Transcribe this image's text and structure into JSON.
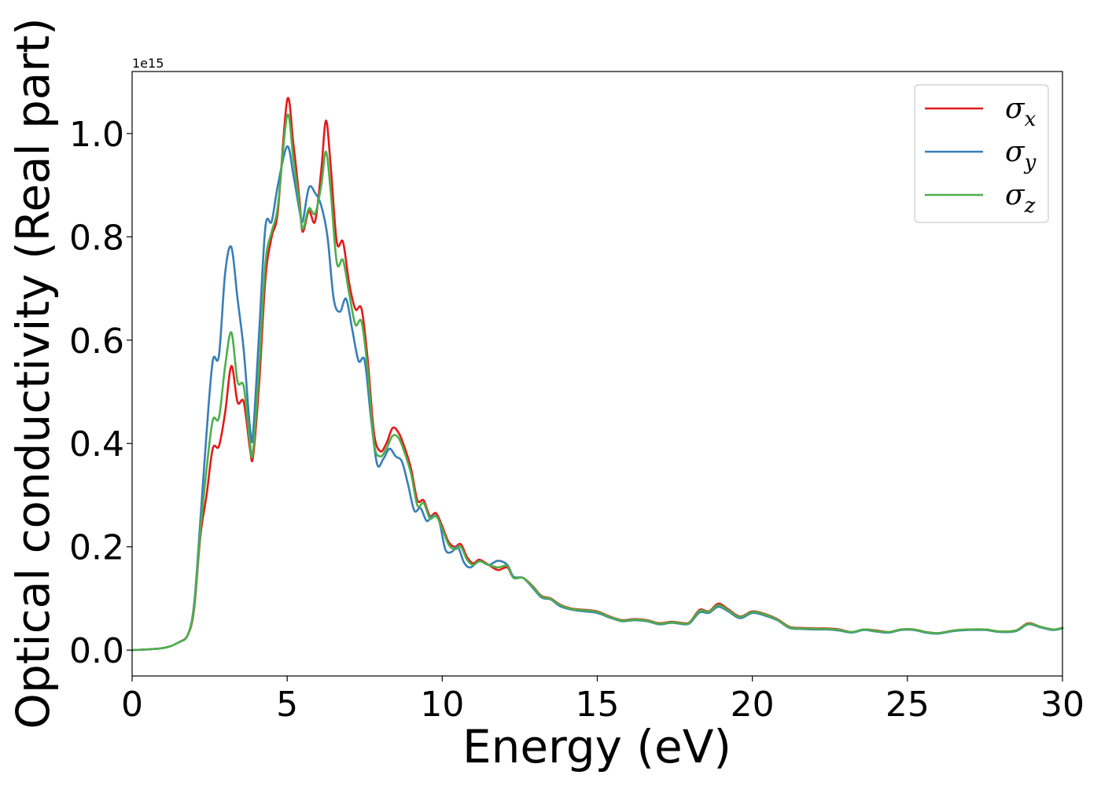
{
  "chart_data": {
    "type": "line",
    "xlabel": "Energy (eV)",
    "ylabel": "Optical conductivity (Real part)",
    "y_offset_text": "1e15",
    "xlim": [
      0,
      30
    ],
    "ylim": [
      -0.05,
      1.12
    ],
    "x_ticks": [
      0,
      5,
      10,
      15,
      20,
      25,
      30
    ],
    "x_tick_labels": [
      "0",
      "5",
      "10",
      "15",
      "20",
      "25",
      "30"
    ],
    "y_ticks": [
      0.0,
      0.2,
      0.4,
      0.6,
      0.8,
      1.0
    ],
    "y_tick_labels": [
      "0.0",
      "0.2",
      "0.4",
      "0.6",
      "0.8",
      "1.0"
    ],
    "grid": false,
    "legend_position": "top-right",
    "series": [
      {
        "name": "σx",
        "legend": {
          "base": "σ",
          "sub": "x"
        },
        "color": "#e41a1c",
        "points": [
          [
            0,
            0
          ],
          [
            1,
            0.004
          ],
          [
            1.5,
            0.015
          ],
          [
            1.8,
            0.03
          ],
          [
            2.0,
            0.08
          ],
          [
            2.2,
            0.22
          ],
          [
            2.4,
            0.3
          ],
          [
            2.6,
            0.39
          ],
          [
            2.8,
            0.395
          ],
          [
            3.0,
            0.46
          ],
          [
            3.2,
            0.55
          ],
          [
            3.4,
            0.48
          ],
          [
            3.6,
            0.48
          ],
          [
            3.8,
            0.39
          ],
          [
            3.9,
            0.375
          ],
          [
            4.1,
            0.52
          ],
          [
            4.3,
            0.72
          ],
          [
            4.5,
            0.8
          ],
          [
            4.7,
            0.85
          ],
          [
            5.0,
            1.065
          ],
          [
            5.2,
            0.98
          ],
          [
            5.4,
            0.87
          ],
          [
            5.5,
            0.81
          ],
          [
            5.7,
            0.85
          ],
          [
            5.9,
            0.83
          ],
          [
            6.1,
            0.93
          ],
          [
            6.25,
            1.025
          ],
          [
            6.4,
            0.94
          ],
          [
            6.6,
            0.79
          ],
          [
            6.8,
            0.79
          ],
          [
            7.0,
            0.71
          ],
          [
            7.2,
            0.66
          ],
          [
            7.4,
            0.66
          ],
          [
            7.6,
            0.56
          ],
          [
            7.8,
            0.42
          ],
          [
            8.0,
            0.385
          ],
          [
            8.2,
            0.4
          ],
          [
            8.4,
            0.43
          ],
          [
            8.6,
            0.42
          ],
          [
            8.8,
            0.39
          ],
          [
            9.0,
            0.35
          ],
          [
            9.2,
            0.29
          ],
          [
            9.4,
            0.29
          ],
          [
            9.6,
            0.26
          ],
          [
            9.8,
            0.265
          ],
          [
            10.0,
            0.24
          ],
          [
            10.2,
            0.21
          ],
          [
            10.4,
            0.2
          ],
          [
            10.6,
            0.205
          ],
          [
            10.8,
            0.18
          ],
          [
            11.0,
            0.168
          ],
          [
            11.2,
            0.175
          ],
          [
            11.5,
            0.165
          ],
          [
            11.8,
            0.155
          ],
          [
            12.1,
            0.16
          ],
          [
            12.3,
            0.14
          ],
          [
            12.6,
            0.14
          ],
          [
            12.9,
            0.125
          ],
          [
            13.2,
            0.105
          ],
          [
            13.5,
            0.1
          ],
          [
            13.8,
            0.088
          ],
          [
            14.2,
            0.08
          ],
          [
            14.6,
            0.078
          ],
          [
            15.0,
            0.075
          ],
          [
            15.4,
            0.065
          ],
          [
            15.8,
            0.058
          ],
          [
            16.2,
            0.06
          ],
          [
            16.6,
            0.058
          ],
          [
            17.0,
            0.052
          ],
          [
            17.4,
            0.055
          ],
          [
            17.8,
            0.052
          ],
          [
            18.0,
            0.055
          ],
          [
            18.3,
            0.078
          ],
          [
            18.6,
            0.075
          ],
          [
            18.9,
            0.09
          ],
          [
            19.2,
            0.08
          ],
          [
            19.6,
            0.065
          ],
          [
            20.0,
            0.075
          ],
          [
            20.4,
            0.07
          ],
          [
            20.8,
            0.06
          ],
          [
            21.2,
            0.045
          ],
          [
            21.6,
            0.043
          ],
          [
            22.0,
            0.042
          ],
          [
            22.4,
            0.042
          ],
          [
            22.8,
            0.04
          ],
          [
            23.2,
            0.035
          ],
          [
            23.6,
            0.04
          ],
          [
            24.0,
            0.038
          ],
          [
            24.4,
            0.035
          ],
          [
            24.8,
            0.04
          ],
          [
            25.2,
            0.04
          ],
          [
            25.6,
            0.035
          ],
          [
            26.0,
            0.033
          ],
          [
            26.5,
            0.038
          ],
          [
            27.0,
            0.04
          ],
          [
            27.5,
            0.04
          ],
          [
            28.0,
            0.036
          ],
          [
            28.5,
            0.038
          ],
          [
            28.9,
            0.052
          ],
          [
            29.3,
            0.045
          ],
          [
            29.7,
            0.04
          ],
          [
            30.0,
            0.043
          ]
        ]
      },
      {
        "name": "σy",
        "legend": {
          "base": "σ",
          "sub": "y"
        },
        "color": "#377eb8",
        "points": [
          [
            0,
            0
          ],
          [
            1,
            0.004
          ],
          [
            1.5,
            0.015
          ],
          [
            1.8,
            0.03
          ],
          [
            2.0,
            0.09
          ],
          [
            2.2,
            0.25
          ],
          [
            2.4,
            0.42
          ],
          [
            2.6,
            0.56
          ],
          [
            2.8,
            0.57
          ],
          [
            3.0,
            0.73
          ],
          [
            3.2,
            0.78
          ],
          [
            3.4,
            0.68
          ],
          [
            3.6,
            0.58
          ],
          [
            3.8,
            0.43
          ],
          [
            3.9,
            0.42
          ],
          [
            4.1,
            0.62
          ],
          [
            4.3,
            0.82
          ],
          [
            4.5,
            0.83
          ],
          [
            4.7,
            0.9
          ],
          [
            5.0,
            0.975
          ],
          [
            5.2,
            0.92
          ],
          [
            5.4,
            0.85
          ],
          [
            5.5,
            0.83
          ],
          [
            5.7,
            0.895
          ],
          [
            5.9,
            0.885
          ],
          [
            6.1,
            0.86
          ],
          [
            6.3,
            0.8
          ],
          [
            6.5,
            0.68
          ],
          [
            6.7,
            0.655
          ],
          [
            6.9,
            0.68
          ],
          [
            7.1,
            0.62
          ],
          [
            7.3,
            0.56
          ],
          [
            7.5,
            0.56
          ],
          [
            7.7,
            0.45
          ],
          [
            7.9,
            0.36
          ],
          [
            8.1,
            0.37
          ],
          [
            8.3,
            0.39
          ],
          [
            8.5,
            0.375
          ],
          [
            8.7,
            0.365
          ],
          [
            8.9,
            0.32
          ],
          [
            9.1,
            0.27
          ],
          [
            9.3,
            0.275
          ],
          [
            9.5,
            0.25
          ],
          [
            9.7,
            0.26
          ],
          [
            9.9,
            0.25
          ],
          [
            10.1,
            0.195
          ],
          [
            10.3,
            0.19
          ],
          [
            10.5,
            0.2
          ],
          [
            10.7,
            0.17
          ],
          [
            10.9,
            0.16
          ],
          [
            11.2,
            0.172
          ],
          [
            11.5,
            0.165
          ],
          [
            11.8,
            0.173
          ],
          [
            12.1,
            0.165
          ],
          [
            12.3,
            0.142
          ],
          [
            12.6,
            0.14
          ],
          [
            12.9,
            0.122
          ],
          [
            13.2,
            0.102
          ],
          [
            13.5,
            0.098
          ],
          [
            13.8,
            0.085
          ],
          [
            14.2,
            0.078
          ],
          [
            14.6,
            0.075
          ],
          [
            15.0,
            0.072
          ],
          [
            15.4,
            0.063
          ],
          [
            15.8,
            0.056
          ],
          [
            16.2,
            0.058
          ],
          [
            16.6,
            0.056
          ],
          [
            17.0,
            0.05
          ],
          [
            17.4,
            0.053
          ],
          [
            17.8,
            0.05
          ],
          [
            18.0,
            0.053
          ],
          [
            18.3,
            0.073
          ],
          [
            18.6,
            0.072
          ],
          [
            18.9,
            0.084
          ],
          [
            19.2,
            0.076
          ],
          [
            19.6,
            0.062
          ],
          [
            20.0,
            0.072
          ],
          [
            20.4,
            0.067
          ],
          [
            20.8,
            0.058
          ],
          [
            21.2,
            0.043
          ],
          [
            21.6,
            0.041
          ],
          [
            22.0,
            0.04
          ],
          [
            22.4,
            0.04
          ],
          [
            22.8,
            0.038
          ],
          [
            23.2,
            0.034
          ],
          [
            23.6,
            0.039
          ],
          [
            24.0,
            0.036
          ],
          [
            24.4,
            0.034
          ],
          [
            24.8,
            0.039
          ],
          [
            25.2,
            0.039
          ],
          [
            25.6,
            0.034
          ],
          [
            26.0,
            0.032
          ],
          [
            26.5,
            0.037
          ],
          [
            27.0,
            0.039
          ],
          [
            27.5,
            0.039
          ],
          [
            28.0,
            0.035
          ],
          [
            28.5,
            0.037
          ],
          [
            28.9,
            0.05
          ],
          [
            29.3,
            0.044
          ],
          [
            29.7,
            0.039
          ],
          [
            30.0,
            0.042
          ]
        ]
      },
      {
        "name": "σz",
        "legend": {
          "base": "σ",
          "sub": "z"
        },
        "color": "#4daf4a",
        "points": [
          [
            0,
            0
          ],
          [
            1,
            0.004
          ],
          [
            1.5,
            0.015
          ],
          [
            1.8,
            0.03
          ],
          [
            2.0,
            0.085
          ],
          [
            2.2,
            0.23
          ],
          [
            2.4,
            0.35
          ],
          [
            2.6,
            0.445
          ],
          [
            2.8,
            0.45
          ],
          [
            3.0,
            0.55
          ],
          [
            3.2,
            0.615
          ],
          [
            3.4,
            0.52
          ],
          [
            3.6,
            0.51
          ],
          [
            3.8,
            0.4
          ],
          [
            3.9,
            0.385
          ],
          [
            4.1,
            0.55
          ],
          [
            4.3,
            0.75
          ],
          [
            4.5,
            0.81
          ],
          [
            4.7,
            0.86
          ],
          [
            5.0,
            1.035
          ],
          [
            5.2,
            0.95
          ],
          [
            5.4,
            0.86
          ],
          [
            5.5,
            0.815
          ],
          [
            5.7,
            0.855
          ],
          [
            5.9,
            0.845
          ],
          [
            6.1,
            0.9
          ],
          [
            6.25,
            0.965
          ],
          [
            6.4,
            0.89
          ],
          [
            6.6,
            0.75
          ],
          [
            6.8,
            0.755
          ],
          [
            7.0,
            0.69
          ],
          [
            7.2,
            0.63
          ],
          [
            7.4,
            0.635
          ],
          [
            7.6,
            0.54
          ],
          [
            7.8,
            0.4
          ],
          [
            8.0,
            0.375
          ],
          [
            8.2,
            0.39
          ],
          [
            8.4,
            0.415
          ],
          [
            8.6,
            0.41
          ],
          [
            8.8,
            0.38
          ],
          [
            9.0,
            0.34
          ],
          [
            9.2,
            0.28
          ],
          [
            9.4,
            0.285
          ],
          [
            9.6,
            0.255
          ],
          [
            9.8,
            0.26
          ],
          [
            10.0,
            0.235
          ],
          [
            10.2,
            0.205
          ],
          [
            10.4,
            0.195
          ],
          [
            10.6,
            0.2
          ],
          [
            10.8,
            0.175
          ],
          [
            11.0,
            0.165
          ],
          [
            11.2,
            0.172
          ],
          [
            11.5,
            0.165
          ],
          [
            11.8,
            0.16
          ],
          [
            12.1,
            0.163
          ],
          [
            12.3,
            0.14
          ],
          [
            12.6,
            0.14
          ],
          [
            12.9,
            0.124
          ],
          [
            13.2,
            0.104
          ],
          [
            13.5,
            0.099
          ],
          [
            13.8,
            0.087
          ],
          [
            14.2,
            0.079
          ],
          [
            14.6,
            0.077
          ],
          [
            15.0,
            0.074
          ],
          [
            15.4,
            0.064
          ],
          [
            15.8,
            0.057
          ],
          [
            16.2,
            0.059
          ],
          [
            16.6,
            0.057
          ],
          [
            17.0,
            0.051
          ],
          [
            17.4,
            0.054
          ],
          [
            17.8,
            0.051
          ],
          [
            18.0,
            0.054
          ],
          [
            18.3,
            0.076
          ],
          [
            18.6,
            0.074
          ],
          [
            18.9,
            0.087
          ],
          [
            19.2,
            0.078
          ],
          [
            19.6,
            0.064
          ],
          [
            20.0,
            0.074
          ],
          [
            20.4,
            0.069
          ],
          [
            20.8,
            0.059
          ],
          [
            21.2,
            0.044
          ],
          [
            21.6,
            0.042
          ],
          [
            22.0,
            0.041
          ],
          [
            22.4,
            0.041
          ],
          [
            22.8,
            0.039
          ],
          [
            23.2,
            0.035
          ],
          [
            23.6,
            0.04
          ],
          [
            24.0,
            0.037
          ],
          [
            24.4,
            0.035
          ],
          [
            24.8,
            0.04
          ],
          [
            25.2,
            0.04
          ],
          [
            25.6,
            0.035
          ],
          [
            26.0,
            0.033
          ],
          [
            26.5,
            0.038
          ],
          [
            27.0,
            0.04
          ],
          [
            27.5,
            0.04
          ],
          [
            28.0,
            0.036
          ],
          [
            28.5,
            0.038
          ],
          [
            28.9,
            0.051
          ],
          [
            29.3,
            0.045
          ],
          [
            29.7,
            0.04
          ],
          [
            30.0,
            0.043
          ]
        ]
      }
    ]
  }
}
